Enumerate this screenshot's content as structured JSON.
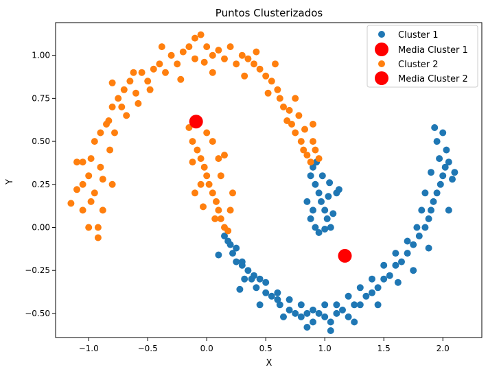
{
  "chart_data": {
    "type": "scatter",
    "title": "Puntos Clusterizados",
    "xlabel": "X",
    "ylabel": "Y",
    "xlim": [
      -1.28,
      2.33
    ],
    "ylim": [
      -0.64,
      1.19
    ],
    "x_ticks": [
      "−1.0",
      "−0.5",
      "0.0",
      "0.5",
      "1.0",
      "1.5",
      "2.0"
    ],
    "x_tick_values": [
      -1.0,
      -0.5,
      0.0,
      0.5,
      1.0,
      1.5,
      2.0
    ],
    "y_ticks": [
      "−0.50",
      "−0.25",
      "0.00",
      "0.25",
      "0.50",
      "0.75",
      "1.00"
    ],
    "y_tick_values": [
      -0.5,
      -0.25,
      0.0,
      0.25,
      0.5,
      0.75,
      1.0
    ],
    "grid": false,
    "legend_position": "top-right",
    "legend": [
      "Cluster 1",
      "Media Cluster 1",
      "Cluster 2",
      "Media Cluster 2"
    ],
    "colors": {
      "cluster1": "#1f77b4",
      "cluster2": "#ff7f0e",
      "mean": "#ff0000"
    },
    "series": [
      {
        "name": "Cluster 1",
        "color": "#1f77b4",
        "points": [
          [
            0.15,
            -0.05
          ],
          [
            0.2,
            -0.1
          ],
          [
            0.22,
            -0.15
          ],
          [
            0.25,
            -0.2
          ],
          [
            0.3,
            -0.22
          ],
          [
            0.32,
            -0.3
          ],
          [
            0.35,
            -0.25
          ],
          [
            0.38,
            -0.3
          ],
          [
            0.42,
            -0.35
          ],
          [
            0.45,
            -0.3
          ],
          [
            0.5,
            -0.38
          ],
          [
            0.55,
            -0.4
          ],
          [
            0.6,
            -0.42
          ],
          [
            0.62,
            -0.45
          ],
          [
            0.7,
            -0.48
          ],
          [
            0.75,
            -0.5
          ],
          [
            0.8,
            -0.52
          ],
          [
            0.85,
            -0.5
          ],
          [
            0.9,
            -0.55
          ],
          [
            0.95,
            -0.5
          ],
          [
            1.0,
            -0.52
          ],
          [
            1.05,
            -0.55
          ],
          [
            1.1,
            -0.5
          ],
          [
            1.15,
            -0.48
          ],
          [
            1.2,
            -0.52
          ],
          [
            1.25,
            -0.45
          ],
          [
            1.3,
            -0.45
          ],
          [
            1.35,
            -0.4
          ],
          [
            1.4,
            -0.38
          ],
          [
            1.45,
            -0.35
          ],
          [
            1.5,
            -0.3
          ],
          [
            1.55,
            -0.28
          ],
          [
            1.6,
            -0.22
          ],
          [
            1.65,
            -0.2
          ],
          [
            1.7,
            -0.15
          ],
          [
            1.75,
            -0.1
          ],
          [
            1.8,
            -0.05
          ],
          [
            1.85,
            0.0
          ],
          [
            1.88,
            0.05
          ],
          [
            1.9,
            0.1
          ],
          [
            1.92,
            0.15
          ],
          [
            1.95,
            0.2
          ],
          [
            1.98,
            0.25
          ],
          [
            2.0,
            0.3
          ],
          [
            2.02,
            0.35
          ],
          [
            1.97,
            0.4
          ],
          [
            2.03,
            0.45
          ],
          [
            1.95,
            0.5
          ],
          [
            2.0,
            0.55
          ],
          [
            1.93,
            0.58
          ],
          [
            2.05,
            0.38
          ],
          [
            2.08,
            0.28
          ],
          [
            1.9,
            0.32
          ],
          [
            1.85,
            0.2
          ],
          [
            1.82,
            0.1
          ],
          [
            1.78,
            0.0
          ],
          [
            1.7,
            -0.08
          ],
          [
            1.6,
            -0.15
          ],
          [
            1.5,
            -0.22
          ],
          [
            1.4,
            -0.3
          ],
          [
            1.3,
            -0.35
          ],
          [
            1.2,
            -0.4
          ],
          [
            1.1,
            -0.45
          ],
          [
            1.0,
            -0.45
          ],
          [
            0.9,
            -0.48
          ],
          [
            0.8,
            -0.45
          ],
          [
            0.7,
            -0.42
          ],
          [
            0.6,
            -0.38
          ],
          [
            0.5,
            -0.32
          ],
          [
            0.4,
            -0.28
          ],
          [
            0.3,
            -0.2
          ],
          [
            0.25,
            -0.12
          ],
          [
            0.18,
            -0.08
          ],
          [
            0.1,
            -0.16
          ],
          [
            0.28,
            -0.36
          ],
          [
            0.45,
            -0.45
          ],
          [
            0.65,
            -0.52
          ],
          [
            0.85,
            -0.58
          ],
          [
            1.05,
            -0.6
          ],
          [
            1.25,
            -0.55
          ],
          [
            1.45,
            -0.45
          ],
          [
            1.62,
            -0.32
          ],
          [
            1.75,
            -0.25
          ],
          [
            1.88,
            -0.12
          ],
          [
            2.1,
            0.32
          ],
          [
            2.05,
            0.1
          ],
          [
            0.88,
            0.3
          ],
          [
            0.9,
            0.35
          ],
          [
            0.92,
            0.25
          ],
          [
            0.95,
            0.2
          ],
          [
            0.97,
            0.15
          ],
          [
            1.0,
            0.1
          ],
          [
            1.02,
            0.05
          ],
          [
            1.05,
            0.0
          ],
          [
            0.93,
            0.38
          ],
          [
            0.98,
            0.3
          ],
          [
            1.03,
            0.18
          ],
          [
            0.9,
            0.1
          ],
          [
            0.88,
            0.05
          ],
          [
            1.07,
            0.08
          ],
          [
            1.1,
            0.2
          ],
          [
            0.95,
            -0.03
          ],
          [
            1.0,
            -0.01
          ],
          [
            1.12,
            0.22
          ],
          [
            0.92,
            0.0
          ],
          [
            0.85,
            0.15
          ],
          [
            1.04,
            0.26
          ]
        ]
      },
      {
        "name": "Cluster 2",
        "color": "#ff7f0e",
        "points": [
          [
            -1.15,
            0.14
          ],
          [
            -1.1,
            0.22
          ],
          [
            -1.1,
            0.38
          ],
          [
            -1.05,
            0.1
          ],
          [
            -1.05,
            0.25
          ],
          [
            -1.0,
            0.3
          ],
          [
            -1.0,
            0.0
          ],
          [
            -0.98,
            0.4
          ],
          [
            -0.95,
            0.5
          ],
          [
            -0.95,
            0.2
          ],
          [
            -0.92,
            -0.06
          ],
          [
            -0.9,
            0.55
          ],
          [
            -0.9,
            0.35
          ],
          [
            -0.88,
            0.1
          ],
          [
            -0.85,
            0.6
          ],
          [
            -0.82,
            0.45
          ],
          [
            -0.8,
            0.7
          ],
          [
            -0.8,
            0.84
          ],
          [
            -0.78,
            0.55
          ],
          [
            -0.75,
            0.75
          ],
          [
            -0.7,
            0.8
          ],
          [
            -0.68,
            0.65
          ],
          [
            -0.65,
            0.85
          ],
          [
            -0.6,
            0.78
          ],
          [
            -0.55,
            0.9
          ],
          [
            -0.5,
            0.85
          ],
          [
            -0.45,
            0.92
          ],
          [
            -0.4,
            0.95
          ],
          [
            -0.35,
            0.9
          ],
          [
            -0.3,
            1.0
          ],
          [
            -0.25,
            0.95
          ],
          [
            -0.2,
            1.02
          ],
          [
            -0.15,
            1.05
          ],
          [
            -0.1,
            1.1
          ],
          [
            -0.05,
            1.12
          ],
          [
            -0.1,
            0.98
          ],
          [
            0.0,
            1.05
          ],
          [
            0.05,
            1.0
          ],
          [
            0.1,
            1.03
          ],
          [
            0.15,
            0.98
          ],
          [
            0.2,
            1.05
          ],
          [
            0.25,
            0.95
          ],
          [
            0.3,
            1.0
          ],
          [
            0.35,
            0.98
          ],
          [
            0.4,
            0.95
          ],
          [
            0.45,
            0.92
          ],
          [
            0.5,
            0.88
          ],
          [
            0.55,
            0.85
          ],
          [
            0.6,
            0.8
          ],
          [
            0.62,
            0.75
          ],
          [
            0.65,
            0.7
          ],
          [
            0.7,
            0.68
          ],
          [
            0.72,
            0.6
          ],
          [
            0.75,
            0.55
          ],
          [
            0.78,
            0.65
          ],
          [
            0.8,
            0.5
          ],
          [
            0.82,
            0.45
          ],
          [
            0.85,
            0.42
          ],
          [
            0.88,
            0.38
          ],
          [
            0.9,
            0.5
          ],
          [
            0.92,
            0.45
          ],
          [
            0.95,
            0.4
          ],
          [
            -0.92,
            0.0
          ],
          [
            -1.05,
            0.38
          ],
          [
            -0.98,
            0.15
          ],
          [
            -0.88,
            0.28
          ],
          [
            -0.72,
            0.7
          ],
          [
            -0.58,
            0.72
          ],
          [
            -0.48,
            0.8
          ],
          [
            -0.22,
            0.86
          ],
          [
            0.05,
            0.9
          ],
          [
            0.32,
            0.88
          ],
          [
            0.52,
            0.78
          ],
          [
            0.68,
            0.62
          ],
          [
            0.83,
            0.57
          ],
          [
            -0.02,
            0.96
          ],
          [
            -0.38,
            1.05
          ],
          [
            0.42,
            1.02
          ],
          [
            -0.8,
            0.25
          ],
          [
            -0.83,
            0.62
          ],
          [
            -0.62,
            0.9
          ],
          [
            0.58,
            0.95
          ],
          [
            0.75,
            0.75
          ],
          [
            0.9,
            0.6
          ],
          [
            -0.15,
            0.58
          ],
          [
            -0.12,
            0.5
          ],
          [
            -0.08,
            0.45
          ],
          [
            -0.05,
            0.4
          ],
          [
            -0.02,
            0.35
          ],
          [
            0.0,
            0.3
          ],
          [
            0.02,
            0.25
          ],
          [
            0.05,
            0.2
          ],
          [
            0.08,
            0.15
          ],
          [
            0.1,
            0.1
          ],
          [
            0.12,
            0.05
          ],
          [
            0.15,
            0.0
          ],
          [
            0.18,
            -0.02
          ],
          [
            0.05,
            0.5
          ],
          [
            0.1,
            0.4
          ],
          [
            0.0,
            0.55
          ],
          [
            -0.05,
            0.25
          ],
          [
            -0.1,
            0.2
          ],
          [
            0.12,
            0.3
          ],
          [
            0.2,
            0.1
          ],
          [
            0.15,
            0.42
          ],
          [
            -0.03,
            0.12
          ],
          [
            0.07,
            0.05
          ],
          [
            -0.12,
            0.38
          ],
          [
            0.22,
            0.2
          ]
        ]
      }
    ],
    "means": [
      {
        "name": "Media Cluster 1",
        "x": 1.17,
        "y": -0.165,
        "color": "#ff0000"
      },
      {
        "name": "Media Cluster 2",
        "x": -0.09,
        "y": 0.615,
        "color": "#ff0000"
      }
    ]
  }
}
